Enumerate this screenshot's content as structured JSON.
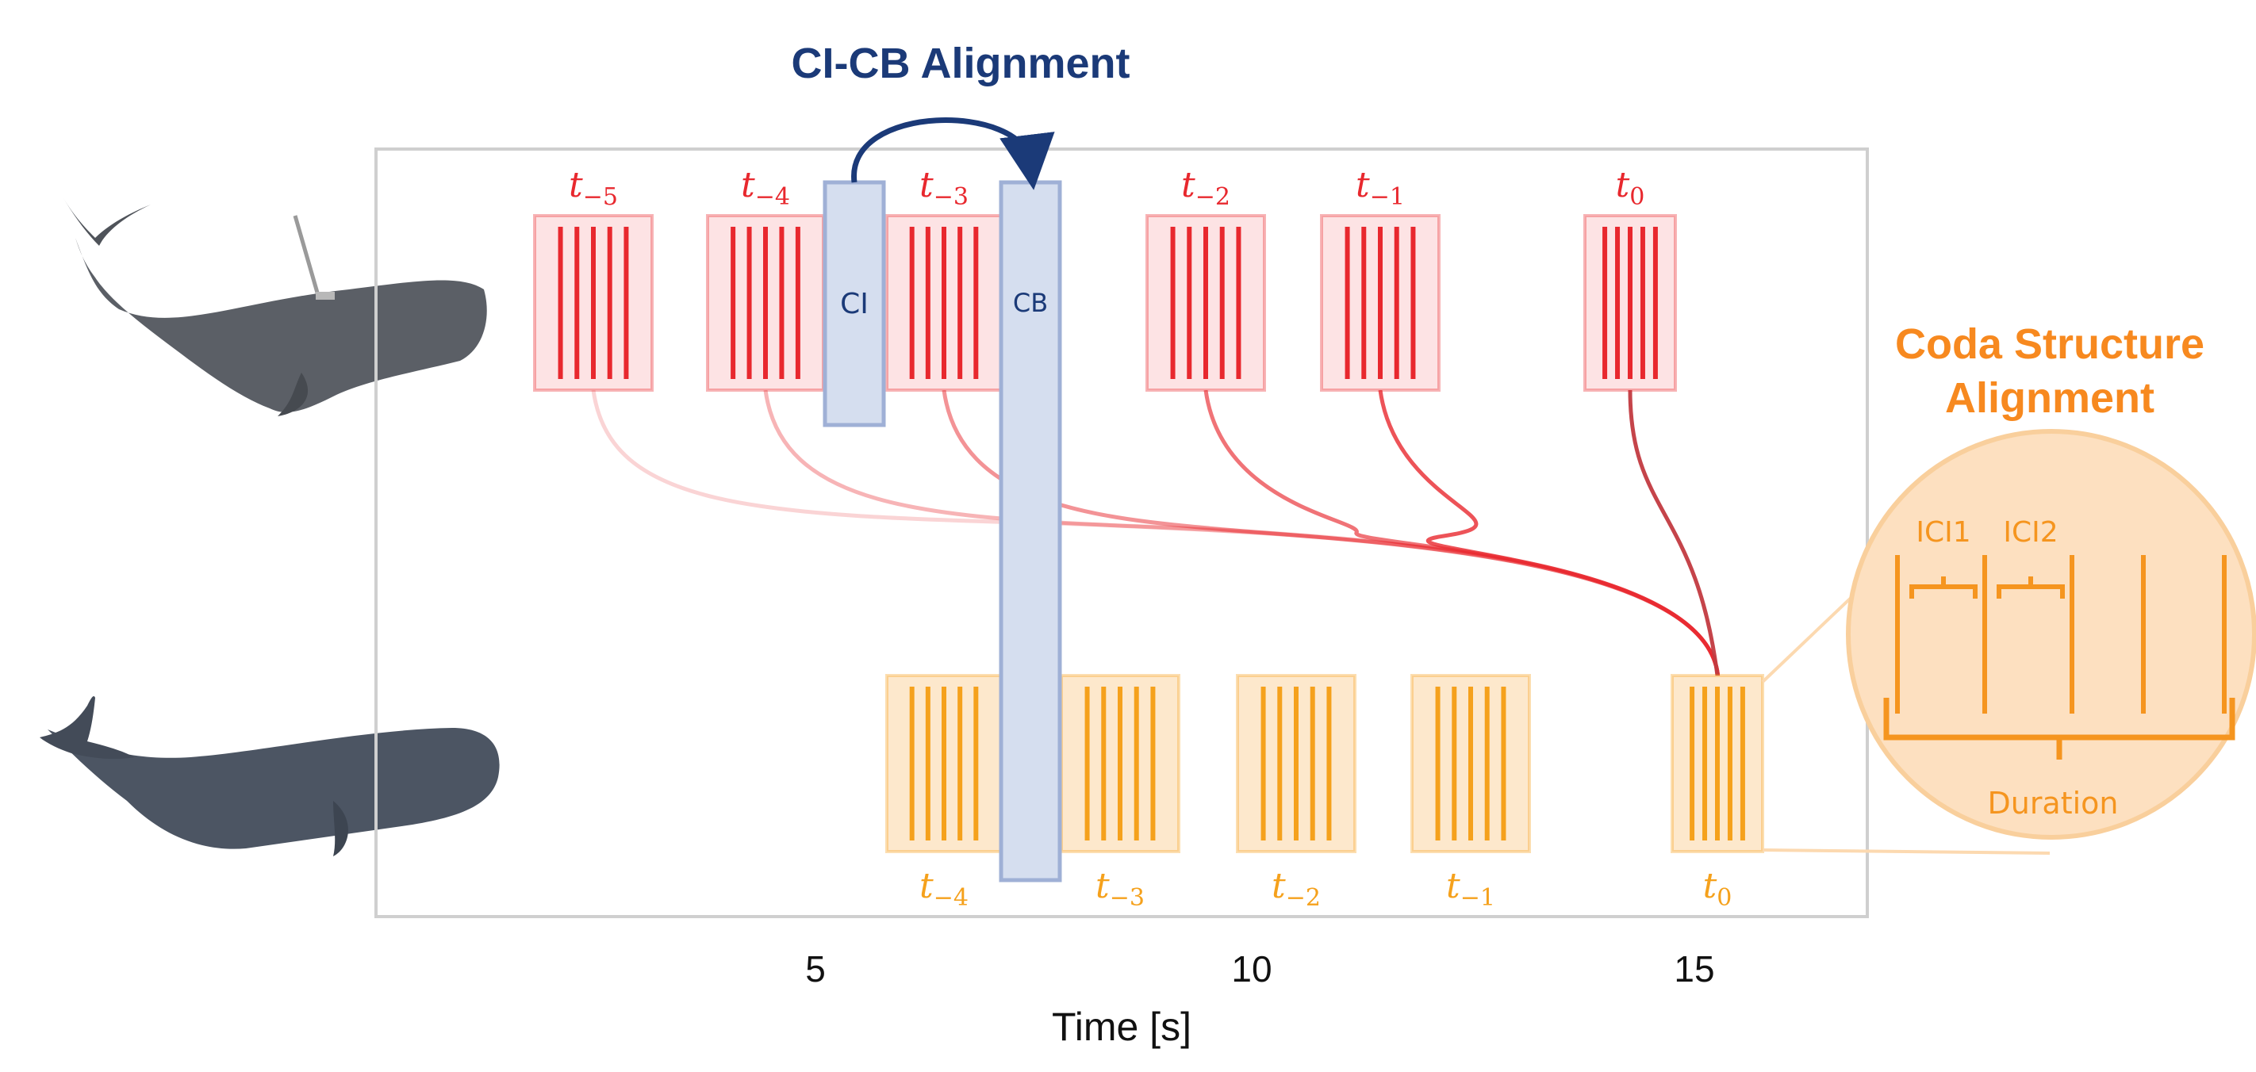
{
  "titles": {
    "ci_cb": "CI-CB Alignment",
    "coda_line1": "Coda Structure",
    "coda_line2": "Alignment"
  },
  "axis": {
    "xlabel": "Time [s]",
    "ticks": [
      5,
      10,
      15
    ]
  },
  "bars": {
    "ci_label": "CI",
    "cb_label": "CB"
  },
  "zoom": {
    "ici1": "ICI1",
    "ici2": "ICI2",
    "duration": "Duration"
  },
  "top_codas": [
    {
      "base": "t",
      "sub": "−5"
    },
    {
      "base": "t",
      "sub": "−4"
    },
    {
      "base": "t",
      "sub": "−3"
    },
    {
      "base": "t",
      "sub": "−2"
    },
    {
      "base": "t",
      "sub": "−1"
    },
    {
      "base": "t",
      "sub": "0"
    }
  ],
  "bottom_codas": [
    {
      "base": "t",
      "sub": "−4"
    },
    {
      "base": "t",
      "sub": "−3"
    },
    {
      "base": "t",
      "sub": "−2"
    },
    {
      "base": "t",
      "sub": "−1"
    },
    {
      "base": "t",
      "sub": "0"
    }
  ],
  "colors": {
    "red": "#e8282e",
    "red_fill": "#fde3e4",
    "orange": "#f5a11c",
    "orange_fill": "#fde8cc",
    "blue_bar": "#d5deef",
    "blue_border": "#9fb0d6",
    "navy": "#1b3a78",
    "orange_title": "#f7891f"
  }
}
